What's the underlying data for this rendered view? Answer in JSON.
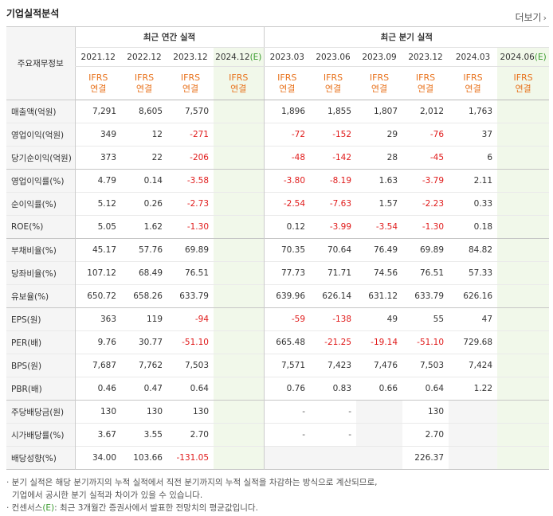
{
  "header": {
    "title": "기업실적분석",
    "more_label": "더보기",
    "more_arrow": "›"
  },
  "table": {
    "corner_label": "주요재무정보",
    "annual_title": "최근 연간 실적",
    "quarter_title": "최근 분기 실적",
    "annual_periods": [
      "2021.12",
      "2022.12",
      "2023.12",
      "2024.12"
    ],
    "quarter_periods": [
      "2023.03",
      "2023.06",
      "2023.09",
      "2023.12",
      "2024.03",
      "2024.06"
    ],
    "estimate_mark": "(E)",
    "ifrs_line1": "IFRS",
    "ifrs_line2": "연결",
    "rows": [
      {
        "label": "매출액(억원)",
        "values": [
          "7,291",
          "8,605",
          "7,570",
          "",
          "1,896",
          "1,855",
          "1,807",
          "2,012",
          "1,763",
          ""
        ]
      },
      {
        "label": "영업이익(억원)",
        "values": [
          "349",
          "12",
          "-271",
          "",
          "-72",
          "-152",
          "29",
          "-76",
          "37",
          ""
        ]
      },
      {
        "label": "당기순이익(억원)",
        "values": [
          "373",
          "22",
          "-206",
          "",
          "-48",
          "-142",
          "28",
          "-45",
          "6",
          ""
        ]
      },
      {
        "label": "영업이익률(%)",
        "values": [
          "4.79",
          "0.14",
          "-3.58",
          "",
          "-3.80",
          "-8.19",
          "1.63",
          "-3.79",
          "2.11",
          ""
        ]
      },
      {
        "label": "순이익률(%)",
        "values": [
          "5.12",
          "0.26",
          "-2.73",
          "",
          "-2.54",
          "-7.63",
          "1.57",
          "-2.23",
          "0.33",
          ""
        ]
      },
      {
        "label": "ROE(%)",
        "values": [
          "5.05",
          "1.62",
          "-1.30",
          "",
          "0.12",
          "-3.99",
          "-3.54",
          "-1.30",
          "0.18",
          ""
        ]
      },
      {
        "label": "부채비율(%)",
        "values": [
          "45.17",
          "57.76",
          "69.89",
          "",
          "70.35",
          "70.64",
          "76.49",
          "69.89",
          "84.82",
          ""
        ]
      },
      {
        "label": "당좌비율(%)",
        "values": [
          "107.12",
          "68.49",
          "76.51",
          "",
          "77.73",
          "71.71",
          "74.56",
          "76.51",
          "57.33",
          ""
        ]
      },
      {
        "label": "유보율(%)",
        "values": [
          "650.72",
          "658.26",
          "633.79",
          "",
          "639.96",
          "626.14",
          "631.12",
          "633.79",
          "626.16",
          ""
        ]
      },
      {
        "label": "EPS(원)",
        "values": [
          "363",
          "119",
          "-94",
          "",
          "-59",
          "-138",
          "49",
          "55",
          "47",
          ""
        ]
      },
      {
        "label": "PER(배)",
        "values": [
          "9.76",
          "30.77",
          "-51.10",
          "",
          "665.48",
          "-21.25",
          "-19.14",
          "-51.10",
          "729.68",
          ""
        ]
      },
      {
        "label": "BPS(원)",
        "values": [
          "7,687",
          "7,762",
          "7,503",
          "",
          "7,571",
          "7,423",
          "7,476",
          "7,503",
          "7,424",
          ""
        ]
      },
      {
        "label": "PBR(배)",
        "values": [
          "0.46",
          "0.47",
          "0.64",
          "",
          "0.76",
          "0.83",
          "0.66",
          "0.64",
          "1.22",
          ""
        ]
      },
      {
        "label": "주당배당금(원)",
        "values": [
          "130",
          "130",
          "130",
          "",
          "-",
          "-",
          "",
          "130",
          "",
          ""
        ]
      },
      {
        "label": "시가배당률(%)",
        "values": [
          "3.67",
          "3.55",
          "2.70",
          "",
          "-",
          "-",
          "",
          "2.70",
          "",
          ""
        ]
      },
      {
        "label": "배당성향(%)",
        "values": [
          "34.00",
          "103.66",
          "-131.05",
          "",
          "",
          "",
          "",
          "226.37",
          "",
          ""
        ]
      }
    ]
  },
  "notes": {
    "line1": "· 분기 실적은 해당 분기까지의 누적 실적에서 직전 분기까지의 누적 실적을 차감하는 방식으로 계산되므로,",
    "line2": "기업에서 공시한 분기 실적과 차이가 있을 수 있습니다.",
    "line3_pre": "· 컨센서스",
    "line3_mark": "(E)",
    "line3_post": ": 최근 3개월간 증권사에서 발표한 전망치의 평균값입니다."
  },
  "colors": {
    "negative": "#e01a1a",
    "ifrs": "#e8721c",
    "estimate": "#3a9b2e",
    "estimate_bg": "#f1f8ea"
  }
}
